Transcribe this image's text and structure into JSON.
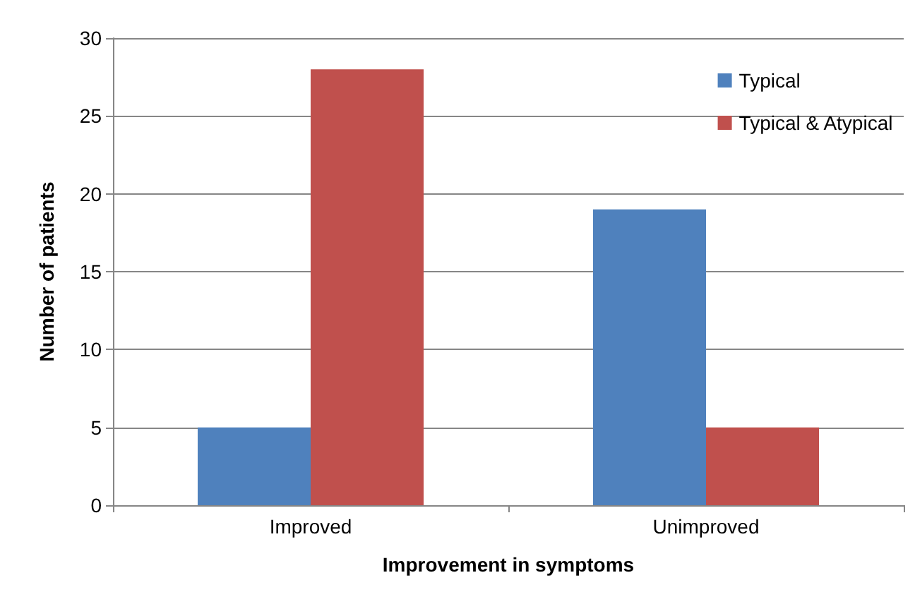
{
  "chart_data": {
    "type": "bar",
    "xlabel": "Improvement in symptoms",
    "ylabel": "Number of patients",
    "categories": [
      "Improved",
      "Unimproved"
    ],
    "series": [
      {
        "name": "Typical",
        "color": "#4f81bd",
        "values": [
          5,
          19
        ]
      },
      {
        "name": "Typical & Atypical",
        "color": "#c0504d",
        "values": [
          28,
          5
        ]
      }
    ],
    "ylim": [
      0,
      30
    ],
    "yticks": [
      0,
      5,
      10,
      15,
      20,
      25,
      30
    ],
    "grid": "y",
    "legend": "top right"
  }
}
